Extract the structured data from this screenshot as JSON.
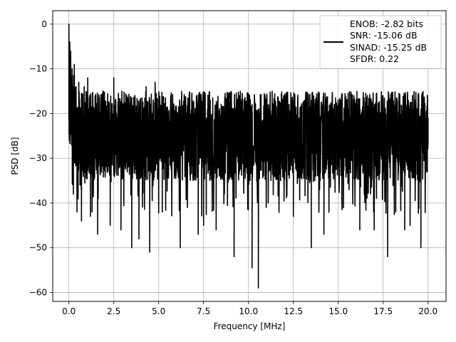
{
  "chart_data": {
    "type": "line",
    "title": "",
    "xlabel": "Frequency [MHz]",
    "ylabel": "PSD [dB]",
    "xlim": [
      -0.9,
      21.0
    ],
    "ylim": [
      -62,
      3
    ],
    "x_ticks": [
      0.0,
      2.5,
      5.0,
      7.5,
      10.0,
      12.5,
      15.0,
      17.5,
      20.0
    ],
    "x_tick_labels": [
      "0.0",
      "2.5",
      "5.0",
      "7.5",
      "10.0",
      "12.5",
      "15.0",
      "17.5",
      "20.0"
    ],
    "y_ticks": [
      0,
      -10,
      -20,
      -30,
      -40,
      -50,
      -60
    ],
    "y_tick_labels": [
      "0",
      "−10",
      "−20",
      "−30",
      "−40",
      "−50",
      "−60"
    ],
    "grid": true,
    "legend_position": "top-right",
    "legend_entries": [
      "ENOB: -2.82 bits",
      "SNR: -15.06 dB",
      "SINAD: -15.25 dB",
      "SFDR: 0.22"
    ],
    "series": [
      {
        "color": "#000000",
        "style": "noise spectrum: dense band approx -18 to -32 dB, peaks near -12 dB, deep nulls to about -59 dB",
        "points": [
          [
            0.0,
            0.0
          ],
          [
            0.02,
            -26
          ],
          [
            0.05,
            -4
          ],
          [
            0.08,
            -22
          ],
          [
            0.1,
            -6
          ],
          [
            0.13,
            -24
          ],
          [
            0.18,
            -10
          ],
          [
            0.22,
            -21
          ],
          [
            0.25,
            -38
          ],
          [
            0.3,
            -9
          ],
          [
            0.34,
            -26
          ],
          [
            0.4,
            -14
          ],
          [
            0.45,
            -42
          ],
          [
            0.55,
            -13
          ],
          [
            0.62,
            -36
          ],
          [
            0.7,
            -44
          ],
          [
            0.85,
            -14
          ],
          [
            1.05,
            -12
          ],
          [
            1.2,
            -43
          ],
          [
            1.6,
            -47
          ],
          [
            1.9,
            -15
          ],
          [
            2.3,
            -45
          ],
          [
            2.5,
            -12
          ],
          [
            2.9,
            -46
          ],
          [
            3.5,
            -50
          ],
          [
            3.9,
            -48
          ],
          [
            4.3,
            -14
          ],
          [
            4.5,
            -51
          ],
          [
            4.8,
            -13
          ],
          [
            5.2,
            -42
          ],
          [
            6.2,
            -50
          ],
          [
            6.6,
            -41
          ],
          [
            7.2,
            -47
          ],
          [
            7.5,
            -45
          ],
          [
            8.2,
            -46
          ],
          [
            9.2,
            -52
          ],
          [
            9.5,
            -16
          ],
          [
            10.2,
            -54.5
          ],
          [
            10.55,
            -59
          ],
          [
            11.1,
            -40
          ],
          [
            12.5,
            -43
          ],
          [
            13.5,
            -50
          ],
          [
            13.5,
            -17
          ],
          [
            14.2,
            -47
          ],
          [
            15.2,
            -40
          ],
          [
            16.2,
            -46
          ],
          [
            17.0,
            -46
          ],
          [
            17.75,
            -52
          ],
          [
            18.2,
            -42
          ],
          [
            18.7,
            -46
          ],
          [
            19.0,
            -45
          ],
          [
            19.6,
            -50
          ],
          [
            19.95,
            -33
          ],
          [
            20.0,
            -27
          ]
        ]
      }
    ]
  }
}
